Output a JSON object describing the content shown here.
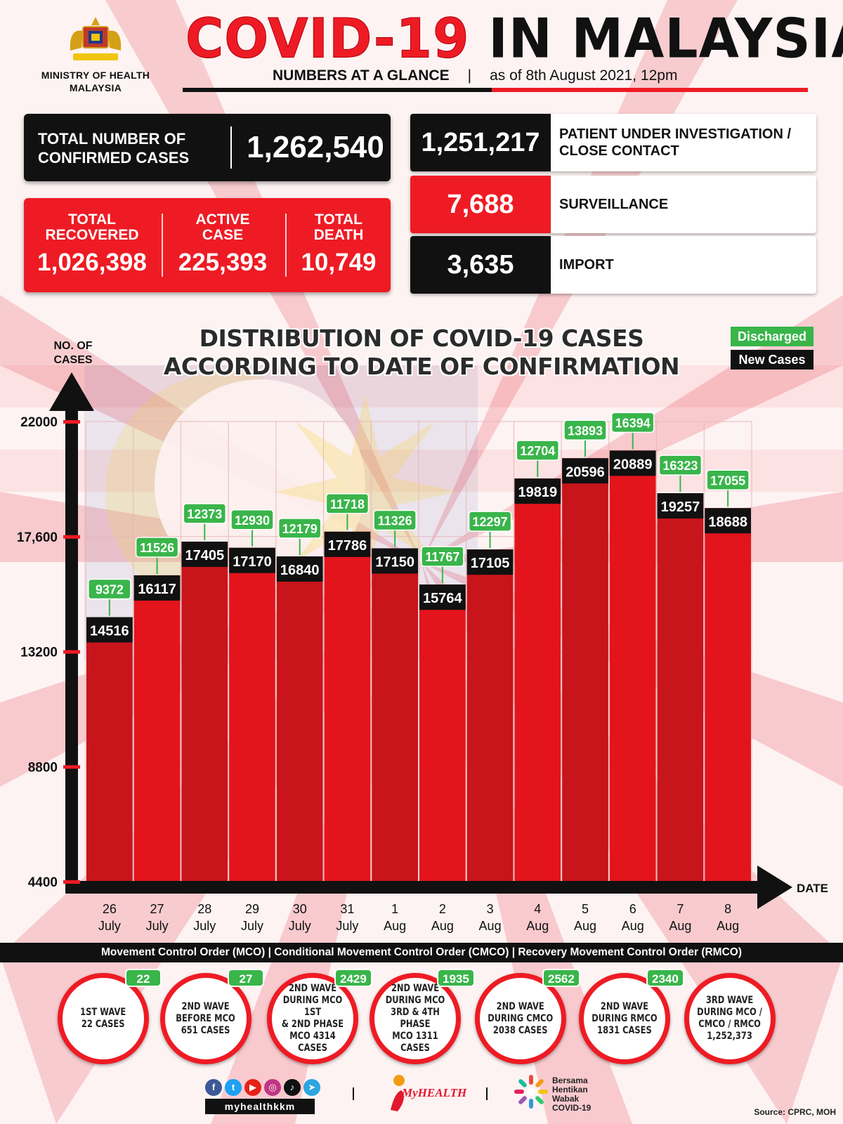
{
  "header": {
    "ministry_line1": "MINISTRY OF HEALTH",
    "ministry_line2": "MALAYSIA",
    "title_part1": "COVID-19",
    "title_part2": "IN MALAYSIA",
    "subtitle_left": "NUMBERS AT A GLANCE",
    "subtitle_sep": "|",
    "subtitle_right": "as of 8th August 2021, 12pm"
  },
  "confirmed": {
    "label_line1": "TOTAL NUMBER OF",
    "label_line2": "CONFIRMED CASES",
    "value": "1,262,540"
  },
  "stats": [
    {
      "label_line1": "TOTAL",
      "label_line2": "RECOVERED",
      "value": "1,026,398"
    },
    {
      "label_line1": "ACTIVE",
      "label_line2": "CASE",
      "value": "225,393"
    },
    {
      "label_line1": "TOTAL",
      "label_line2": "DEATH",
      "value": "10,749"
    }
  ],
  "breakdown": [
    {
      "value": "1,251,217",
      "label": "PATIENT UNDER INVESTIGATION / CLOSE CONTACT",
      "color": "#111111"
    },
    {
      "value": "7,688",
      "label": "SURVEILLANCE",
      "color": "#ee1b24"
    },
    {
      "value": "3,635",
      "label": "IMPORT",
      "color": "#111111"
    }
  ],
  "colors": {
    "red": "#ee1b24",
    "green": "#39b54a",
    "black": "#111111",
    "bar_dark": "#c8141b"
  },
  "chart_data": {
    "type": "bar",
    "title_line1": "DISTRIBUTION OF COVID-19 CASES",
    "title_line2": "ACCORDING TO DATE OF CONFIRMATION",
    "ylabel_line1": "NO. OF",
    "ylabel_line2": "CASES",
    "xlabel": "DATE",
    "ylim": [
      4400,
      22000
    ],
    "yticks": [
      "22000",
      "17,600",
      "13200",
      "8800",
      "4400"
    ],
    "ytick_values": [
      22000,
      17600,
      13200,
      8800,
      4400
    ],
    "categories": [
      [
        "26",
        "July"
      ],
      [
        "27",
        "July"
      ],
      [
        "28",
        "July"
      ],
      [
        "29",
        "July"
      ],
      [
        "30",
        "July"
      ],
      [
        "31",
        "July"
      ],
      [
        "1",
        "Aug"
      ],
      [
        "2",
        "Aug"
      ],
      [
        "3",
        "Aug"
      ],
      [
        "4",
        "Aug"
      ],
      [
        "5",
        "Aug"
      ],
      [
        "6",
        "Aug"
      ],
      [
        "7",
        "Aug"
      ],
      [
        "8",
        "Aug"
      ]
    ],
    "series": [
      {
        "name": "New Cases",
        "values": [
          14516,
          16117,
          17405,
          17170,
          16840,
          17786,
          17150,
          15764,
          17105,
          19819,
          20596,
          20889,
          19257,
          18688
        ]
      },
      {
        "name": "Discharged",
        "values": [
          9372,
          11526,
          12373,
          12930,
          12179,
          11718,
          11326,
          11767,
          12297,
          12704,
          13893,
          16394,
          16323,
          17055
        ]
      }
    ],
    "legend": [
      "Discharged",
      "New Cases"
    ],
    "legend_position": "top-right",
    "grid": true
  },
  "footer": {
    "mco_bar": "Movement Control Order (MCO) | Conditional Movement Control Order (CMCO) | Recovery Movement Control Order (RMCO)",
    "waves": [
      {
        "badge": "22",
        "lines": [
          "1ST WAVE",
          "22 CASES"
        ]
      },
      {
        "badge": "27",
        "lines": [
          "2ND WAVE",
          "BEFORE MCO",
          "651 CASES"
        ]
      },
      {
        "badge": "2429",
        "lines": [
          "2ND WAVE",
          "DURING MCO 1ST",
          "& 2ND PHASE",
          "MCO 4314",
          "CASES"
        ]
      },
      {
        "badge": "1935",
        "lines": [
          "2ND WAVE",
          "DURING MCO",
          "3RD & 4TH PHASE",
          "MCO 1311",
          "CASES"
        ]
      },
      {
        "badge": "2562",
        "lines": [
          "2ND WAVE",
          "DURING CMCO",
          "2038 CASES"
        ]
      },
      {
        "badge": "2340",
        "lines": [
          "2ND WAVE",
          "DURING RMCO",
          "1831 CASES"
        ]
      },
      {
        "badge": "",
        "lines": [
          "3RD WAVE",
          "DURING MCO /",
          "CMCO / RMCO",
          "1,252,373"
        ]
      }
    ],
    "social_icons": [
      "facebook-icon",
      "twitter-icon",
      "youtube-icon",
      "instagram-icon",
      "tiktok-icon",
      "telegram-icon"
    ],
    "handle": "myhealthkkm",
    "myhealth": "MyHEALTH",
    "bersama_lines": [
      "Bersama",
      "Hentikan",
      "Wabak",
      "COVID-19"
    ],
    "source": "Source: CPRC, MOH"
  }
}
